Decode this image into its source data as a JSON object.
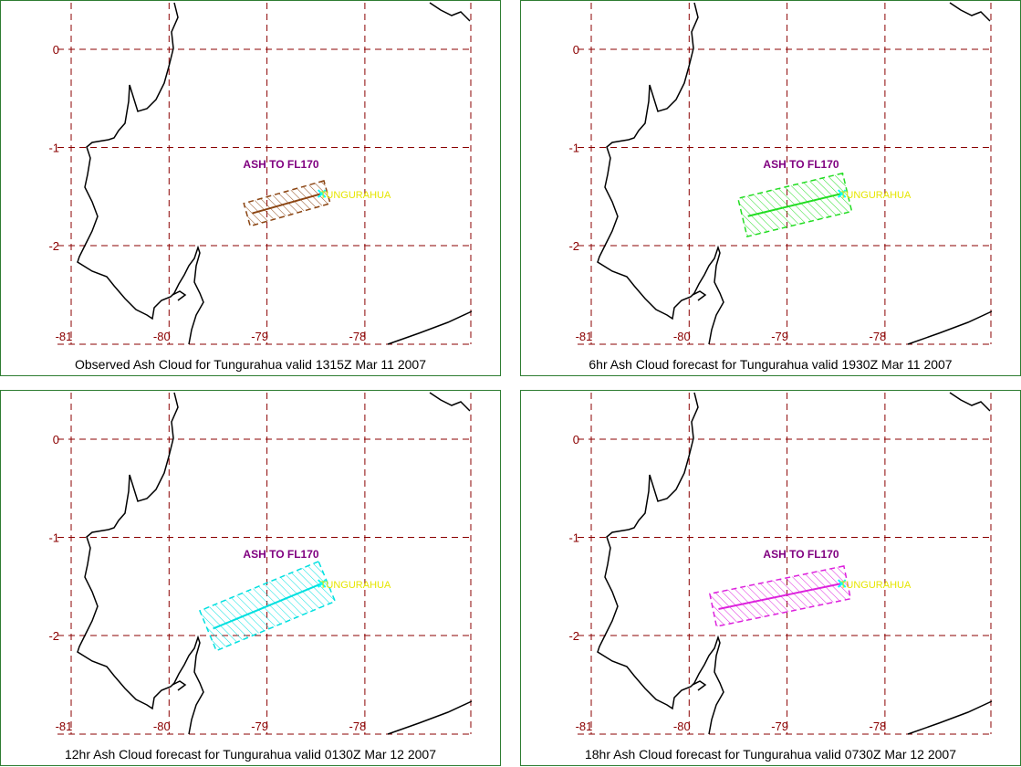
{
  "panels": [
    {
      "caption": "Observed Ash Cloud for Tungurahua valid 1315Z Mar 11 2007",
      "ash_label": "ASH TO FL170",
      "volcano": "TUNGURAHUA",
      "color": "#8b4513",
      "end_lon": -79.15,
      "end_lat": -1.67,
      "half_width": 0.12
    },
    {
      "caption": "6hr Ash Cloud forecast for Tungurahua valid 1930Z Mar 11 2007",
      "ash_label": "ASH TO FL170",
      "volcano": "TUNGURAHUA",
      "color": "#22dd22",
      "end_lon": -79.4,
      "end_lat": -1.7,
      "half_width": 0.2
    },
    {
      "caption": "12hr Ash Cloud forecast for Tungurahua valid 0130Z Mar 12 2007",
      "ash_label": "ASH TO FL170",
      "volcano": "TUNGURAHUA",
      "color": "#00e0e0",
      "end_lon": -79.55,
      "end_lat": -1.93,
      "half_width": 0.22
    },
    {
      "caption": "18hr Ash Cloud forecast for Tungurahua valid 0730Z Mar 12 2007",
      "ash_label": "ASH TO FL170",
      "volcano": "TUNGURAHUA",
      "color": "#dd22dd",
      "end_lon": -79.7,
      "end_lat": -1.73,
      "half_width": 0.17
    }
  ],
  "map": {
    "lon_ticks": [
      "-81",
      "-80",
      "-79",
      "-78"
    ],
    "lat_ticks": [
      "0",
      "-1",
      "-2"
    ],
    "volcano_lon": -78.44,
    "volcano_lat": -1.47,
    "grid_color": "#8b0000",
    "frame_color": "#2e7d32"
  }
}
